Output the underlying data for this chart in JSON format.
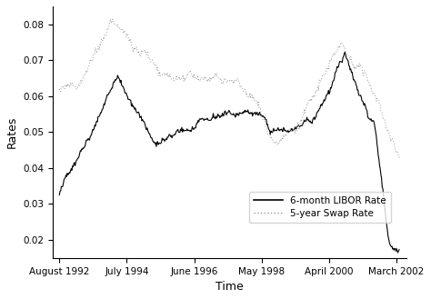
{
  "xlabel": "Time",
  "ylabel": "Rates",
  "yticks": [
    0.02,
    0.03,
    0.04,
    0.05,
    0.06,
    0.07,
    0.08
  ],
  "xtick_labels": [
    "August 1992",
    "July 1994",
    "June 1996",
    "May 1998",
    "April 2000",
    "March 2002"
  ],
  "xtick_positions": [
    1992.583,
    1994.5,
    1996.417,
    1998.333,
    2000.25,
    2002.167
  ],
  "legend_labels": [
    "6-month LIBOR Rate",
    "5-year Swap Rate"
  ],
  "line_color_libor": "#000000",
  "line_color_swap": "#999999",
  "background_color": "#ffffff",
  "linewidth_libor": 0.8,
  "linewidth_swap": 0.7,
  "start_year": 1992.583,
  "end_year": 2002.25,
  "ylim": [
    0.015,
    0.085
  ],
  "xlim": [
    1992.4,
    2002.45
  ],
  "n_points": 520
}
